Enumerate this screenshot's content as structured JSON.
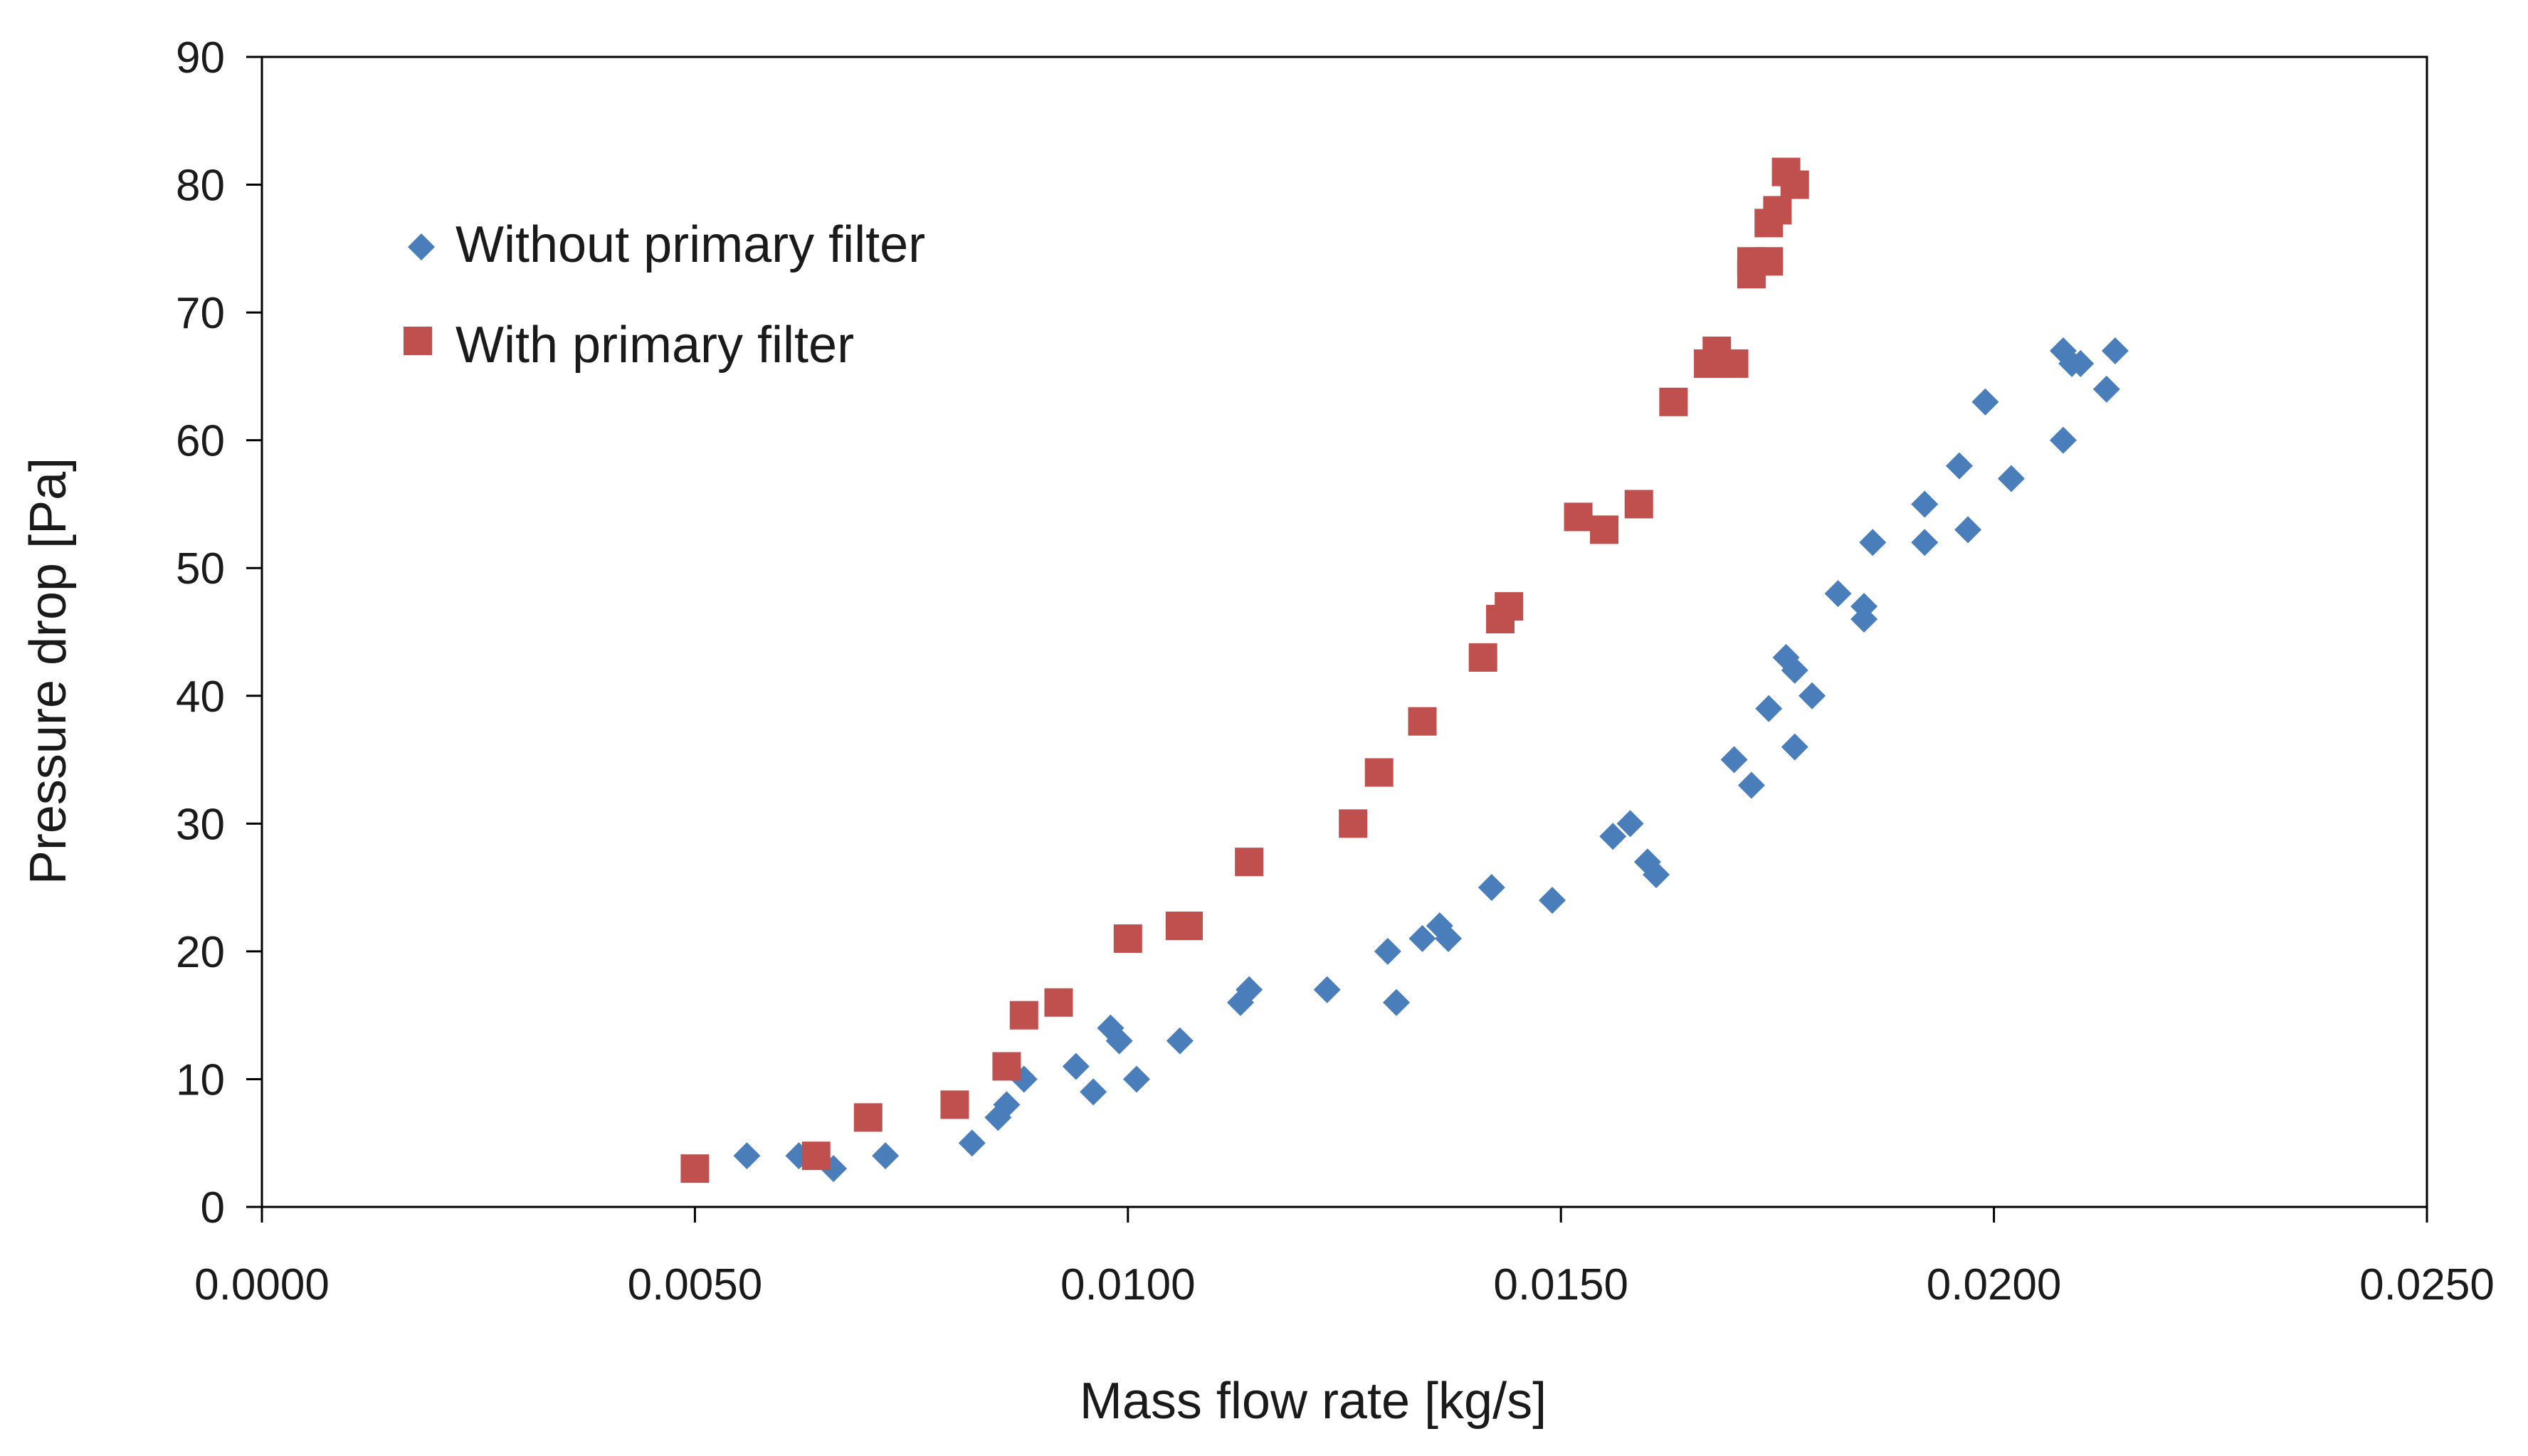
{
  "chart_data": {
    "type": "scatter",
    "title": "",
    "xlabel": "Mass flow rate [kg/s]",
    "ylabel": "Pressure drop [Pa]",
    "xlim": [
      0,
      0.025
    ],
    "ylim": [
      0,
      90
    ],
    "grid": false,
    "legend_position": "top-left",
    "x_ticks": [
      {
        "value": 0.0,
        "label": "0.0000"
      },
      {
        "value": 0.005,
        "label": "0.0050"
      },
      {
        "value": 0.01,
        "label": "0.0100"
      },
      {
        "value": 0.015,
        "label": "0.0150"
      },
      {
        "value": 0.02,
        "label": "0.0200"
      },
      {
        "value": 0.025,
        "label": "0.0250"
      }
    ],
    "y_ticks": [
      {
        "value": 0,
        "label": "0"
      },
      {
        "value": 10,
        "label": "10"
      },
      {
        "value": 20,
        "label": "20"
      },
      {
        "value": 30,
        "label": "30"
      },
      {
        "value": 40,
        "label": "40"
      },
      {
        "value": 50,
        "label": "50"
      },
      {
        "value": 60,
        "label": "60"
      },
      {
        "value": 70,
        "label": "70"
      },
      {
        "value": 80,
        "label": "80"
      },
      {
        "value": 90,
        "label": "90"
      }
    ],
    "series": [
      {
        "name": "Without primary filter",
        "marker": "diamond",
        "color": "#4a7ebb",
        "points": [
          {
            "x": 0.0056,
            "y": 4
          },
          {
            "x": 0.0062,
            "y": 4
          },
          {
            "x": 0.0066,
            "y": 3
          },
          {
            "x": 0.0072,
            "y": 4
          },
          {
            "x": 0.0082,
            "y": 5
          },
          {
            "x": 0.0085,
            "y": 7
          },
          {
            "x": 0.0086,
            "y": 8
          },
          {
            "x": 0.0088,
            "y": 10
          },
          {
            "x": 0.0094,
            "y": 11
          },
          {
            "x": 0.0096,
            "y": 9
          },
          {
            "x": 0.0098,
            "y": 14
          },
          {
            "x": 0.0099,
            "y": 13
          },
          {
            "x": 0.0101,
            "y": 10
          },
          {
            "x": 0.0106,
            "y": 13
          },
          {
            "x": 0.0113,
            "y": 16
          },
          {
            "x": 0.0114,
            "y": 17
          },
          {
            "x": 0.0123,
            "y": 17
          },
          {
            "x": 0.013,
            "y": 20
          },
          {
            "x": 0.0131,
            "y": 16
          },
          {
            "x": 0.0134,
            "y": 21
          },
          {
            "x": 0.0136,
            "y": 22
          },
          {
            "x": 0.0137,
            "y": 21
          },
          {
            "x": 0.0142,
            "y": 25
          },
          {
            "x": 0.0149,
            "y": 24
          },
          {
            "x": 0.0156,
            "y": 29
          },
          {
            "x": 0.0158,
            "y": 30
          },
          {
            "x": 0.016,
            "y": 27
          },
          {
            "x": 0.0161,
            "y": 26
          },
          {
            "x": 0.017,
            "y": 35
          },
          {
            "x": 0.0172,
            "y": 33
          },
          {
            "x": 0.0174,
            "y": 39
          },
          {
            "x": 0.0176,
            "y": 43
          },
          {
            "x": 0.0177,
            "y": 42
          },
          {
            "x": 0.0177,
            "y": 36
          },
          {
            "x": 0.0179,
            "y": 40
          },
          {
            "x": 0.0182,
            "y": 48
          },
          {
            "x": 0.0185,
            "y": 47
          },
          {
            "x": 0.0185,
            "y": 46
          },
          {
            "x": 0.0186,
            "y": 52
          },
          {
            "x": 0.0192,
            "y": 55
          },
          {
            "x": 0.0192,
            "y": 52
          },
          {
            "x": 0.0196,
            "y": 58
          },
          {
            "x": 0.0197,
            "y": 53
          },
          {
            "x": 0.0199,
            "y": 63
          },
          {
            "x": 0.0202,
            "y": 57
          },
          {
            "x": 0.0208,
            "y": 60
          },
          {
            "x": 0.0208,
            "y": 67
          },
          {
            "x": 0.0209,
            "y": 66
          },
          {
            "x": 0.021,
            "y": 66
          },
          {
            "x": 0.0213,
            "y": 64
          },
          {
            "x": 0.0214,
            "y": 67
          }
        ]
      },
      {
        "name": "With primary filter",
        "marker": "square",
        "color": "#c0504d",
        "points": [
          {
            "x": 0.005,
            "y": 3
          },
          {
            "x": 0.0064,
            "y": 4
          },
          {
            "x": 0.007,
            "y": 7
          },
          {
            "x": 0.008,
            "y": 8
          },
          {
            "x": 0.0086,
            "y": 11
          },
          {
            "x": 0.0088,
            "y": 15
          },
          {
            "x": 0.0092,
            "y": 16
          },
          {
            "x": 0.01,
            "y": 21
          },
          {
            "x": 0.0106,
            "y": 22
          },
          {
            "x": 0.0107,
            "y": 22
          },
          {
            "x": 0.0114,
            "y": 27
          },
          {
            "x": 0.0126,
            "y": 30
          },
          {
            "x": 0.0129,
            "y": 34
          },
          {
            "x": 0.0134,
            "y": 38
          },
          {
            "x": 0.0141,
            "y": 43
          },
          {
            "x": 0.0143,
            "y": 46
          },
          {
            "x": 0.0144,
            "y": 47
          },
          {
            "x": 0.0152,
            "y": 54
          },
          {
            "x": 0.0155,
            "y": 53
          },
          {
            "x": 0.0159,
            "y": 55
          },
          {
            "x": 0.0163,
            "y": 63
          },
          {
            "x": 0.0167,
            "y": 66
          },
          {
            "x": 0.0168,
            "y": 67
          },
          {
            "x": 0.017,
            "y": 66
          },
          {
            "x": 0.0172,
            "y": 73
          },
          {
            "x": 0.0172,
            "y": 74
          },
          {
            "x": 0.0174,
            "y": 74
          },
          {
            "x": 0.0174,
            "y": 77
          },
          {
            "x": 0.0175,
            "y": 78
          },
          {
            "x": 0.0176,
            "y": 81
          },
          {
            "x": 0.0177,
            "y": 80
          }
        ]
      }
    ]
  }
}
